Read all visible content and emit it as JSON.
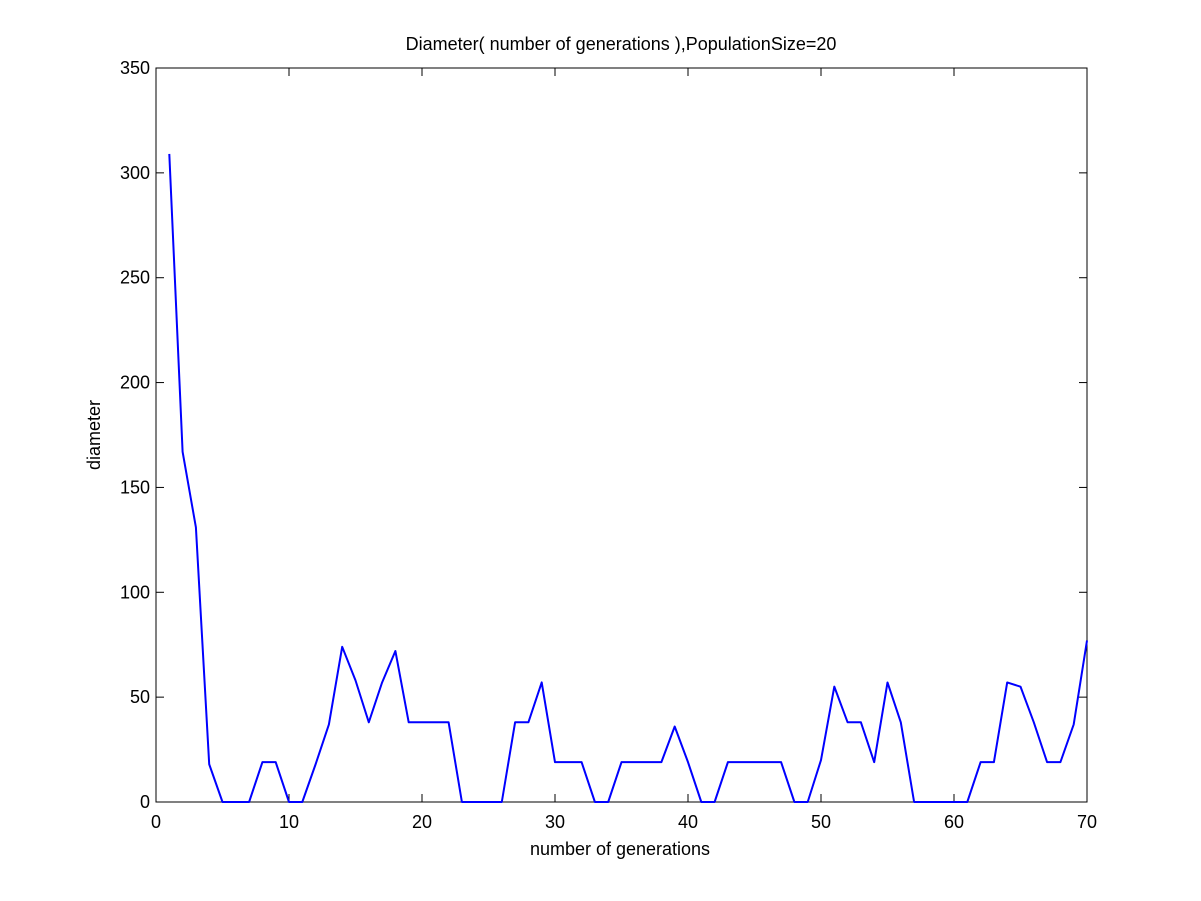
{
  "chart_data": {
    "type": "line",
    "title": "Diameter( number of generations ),PopulationSize=20",
    "xlabel": "number of generations",
    "ylabel": "diameter",
    "xlim": [
      0,
      70
    ],
    "ylim": [
      0,
      350
    ],
    "xticks": [
      0,
      10,
      20,
      30,
      40,
      50,
      60,
      70
    ],
    "yticks": [
      0,
      50,
      100,
      150,
      200,
      250,
      300,
      350
    ],
    "grid": false,
    "line_color": "#0000ff",
    "x": [
      1,
      2,
      3,
      4,
      5,
      6,
      7,
      8,
      9,
      10,
      11,
      12,
      13,
      14,
      15,
      16,
      17,
      18,
      19,
      20,
      21,
      22,
      23,
      24,
      25,
      26,
      27,
      28,
      29,
      30,
      31,
      32,
      33,
      34,
      35,
      36,
      37,
      38,
      39,
      40,
      41,
      42,
      43,
      44,
      45,
      46,
      47,
      48,
      49,
      50,
      51,
      52,
      53,
      54,
      55,
      56,
      57,
      58,
      59,
      60,
      61,
      62,
      63,
      64,
      65,
      66,
      67,
      68,
      69,
      70
    ],
    "values": [
      309,
      167,
      131,
      18,
      0,
      0,
      0,
      19,
      19,
      0,
      0,
      18,
      37,
      74,
      58,
      38,
      57,
      72,
      38,
      38,
      38,
      38,
      0,
      0,
      0,
      0,
      38,
      38,
      57,
      19,
      19,
      19,
      0,
      0,
      19,
      19,
      19,
      19,
      36,
      19,
      0,
      0,
      19,
      19,
      19,
      19,
      19,
      0,
      0,
      20,
      55,
      38,
      38,
      19,
      57,
      38,
      0,
      0,
      0,
      0,
      0,
      19,
      19,
      57,
      55,
      38,
      19,
      19,
      37,
      77
    ]
  }
}
